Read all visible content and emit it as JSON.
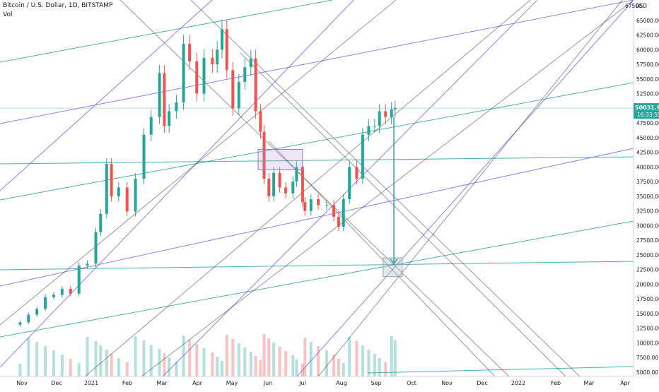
{
  "header": {
    "symbol": "Bitcoin / U.S. Dollar, 1D, BITSTAMP",
    "volume_label": "Vol"
  },
  "price_tag": {
    "price": "50031.98",
    "countdown": "16:33:55"
  },
  "axis_unit": "USD",
  "colors": {
    "up": "#26a69a",
    "down": "#ef5350",
    "teal_lines": "#26a69a",
    "purple_lines": "#7b68ee",
    "black_lines": "#444444",
    "price_tag_bg": "#26a69a"
  },
  "chart_data": {
    "type": "candlestick",
    "title": "Bitcoin / U.S. Dollar, 1D, BITSTAMP",
    "ylabel": "USD",
    "ylim": [
      5000,
      67500
    ],
    "y_ticks": [
      5000,
      7500,
      10000,
      12500,
      15000,
      17500,
      20000,
      22500,
      25000,
      27500,
      30000,
      32500,
      35000,
      37500,
      40000,
      42500,
      45000,
      47500,
      50000,
      52500,
      55000,
      57500,
      60000,
      62500,
      65000,
      67500
    ],
    "x_ticks": [
      "Nov",
      "Dec",
      "2021",
      "Feb",
      "Mar",
      "Apr",
      "May",
      "Jun",
      "Jul",
      "Aug",
      "Sep",
      "Oct",
      "Nov",
      "Dec",
      "2022",
      "Feb",
      "Mar",
      "Apr"
    ],
    "series": [
      {
        "kind": "price",
        "x": [
          "2020-10-28",
          "2020-11-04",
          "2020-11-11",
          "2020-11-18",
          "2020-11-25",
          "2020-12-02",
          "2020-12-09",
          "2020-12-16",
          "2020-12-23",
          "2020-12-30",
          "2021-01-03",
          "2021-01-08",
          "2021-01-12",
          "2021-01-18",
          "2021-01-25",
          "2021-02-01",
          "2021-02-08",
          "2021-02-14",
          "2021-02-21",
          "2021-02-25",
          "2021-03-01",
          "2021-03-07",
          "2021-03-13",
          "2021-03-18",
          "2021-03-24",
          "2021-03-30",
          "2021-04-06",
          "2021-04-10",
          "2021-04-14",
          "2021-04-18",
          "2021-04-23",
          "2021-04-28",
          "2021-05-03",
          "2021-05-08",
          "2021-05-12",
          "2021-05-16",
          "2021-05-19",
          "2021-05-23",
          "2021-05-27",
          "2021-06-01",
          "2021-06-06",
          "2021-06-12",
          "2021-06-15",
          "2021-06-20",
          "2021-06-22",
          "2021-06-27",
          "2021-07-03",
          "2021-07-10",
          "2021-07-16",
          "2021-07-20",
          "2021-07-24",
          "2021-07-29",
          "2021-08-04",
          "2021-08-09",
          "2021-08-14",
          "2021-08-19",
          "2021-08-23",
          "2021-08-28",
          "2021-09-02",
          "2021-09-05"
        ],
        "values": [
          13500,
          14800,
          15800,
          17800,
          18200,
          19200,
          18400,
          23200,
          23500,
          28900,
          32000,
          40500,
          35000,
          36500,
          32400,
          38000,
          45500,
          48500,
          56000,
          47000,
          49500,
          51000,
          61000,
          58000,
          52500,
          58600,
          57500,
          60000,
          63500,
          56500,
          50000,
          54500,
          57000,
          58500,
          49500,
          46000,
          38000,
          35000,
          39000,
          36500,
          35500,
          37500,
          40000,
          34000,
          32500,
          34500,
          33500,
          33500,
          31500,
          29800,
          34500,
          40000,
          38000,
          45500,
          47000,
          47000,
          49500,
          48500,
          49800,
          50031.98
        ]
      }
    ],
    "annotations": {
      "arrow": {
        "from": [
          "2021-09-04",
          48500
        ],
        "to": [
          "2021-09-04",
          23500
        ]
      },
      "target_box": {
        "x": [
          "2021-08-26",
          "2021-09-11"
        ],
        "y": [
          21300,
          24500
        ]
      },
      "range_box": {
        "x": [
          "2021-05-14",
          "2021-06-20"
        ],
        "y": [
          39500,
          43000
        ]
      }
    },
    "grid": false,
    "legend": "none"
  }
}
